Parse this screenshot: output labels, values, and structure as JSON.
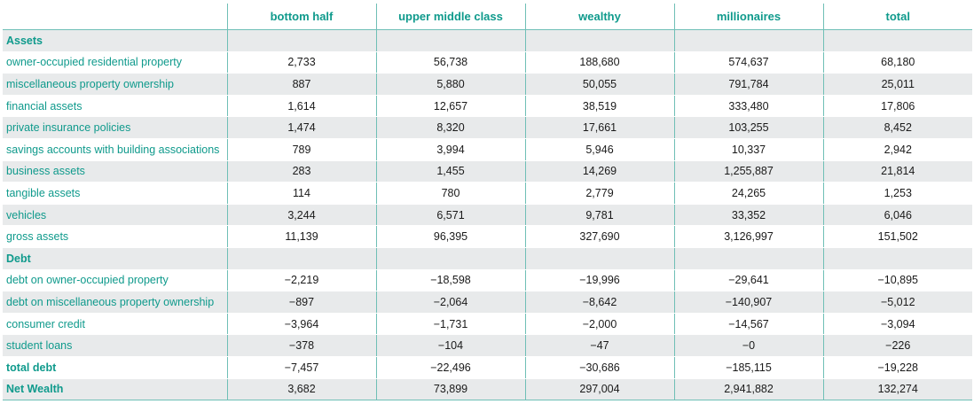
{
  "columns": [
    "",
    "bottom half",
    "upper middle class",
    "wealthy",
    "millionaires",
    "total"
  ],
  "rows": [
    {
      "label": "Assets",
      "type": "section",
      "values": [
        "",
        "",
        "",
        "",
        ""
      ]
    },
    {
      "label": "owner-occupied residential property",
      "type": "row",
      "values": [
        "2,733",
        "56,738",
        "188,680",
        "574,637",
        "68,180"
      ]
    },
    {
      "label": "miscellaneous property ownership",
      "type": "row",
      "values": [
        "887",
        "5,880",
        "50,055",
        "791,784",
        "25,011"
      ]
    },
    {
      "label": "financial assets",
      "type": "row",
      "values": [
        "1,614",
        "12,657",
        "38,519",
        "333,480",
        "17,806"
      ]
    },
    {
      "label": "private insurance policies",
      "type": "row",
      "values": [
        "1,474",
        "8,320",
        "17,661",
        "103,255",
        "8,452"
      ]
    },
    {
      "label": "savings accounts with building associations",
      "type": "row",
      "values": [
        "789",
        "3,994",
        "5,946",
        "10,337",
        "2,942"
      ]
    },
    {
      "label": "business assets",
      "type": "row",
      "values": [
        "283",
        "1,455",
        "14,269",
        "1,255,887",
        "21,814"
      ]
    },
    {
      "label": "tangible assets",
      "type": "row",
      "values": [
        "114",
        "780",
        "2,779",
        "24,265",
        "1,253"
      ]
    },
    {
      "label": "vehicles",
      "type": "row",
      "values": [
        "3,244",
        "6,571",
        "9,781",
        "33,352",
        "6,046"
      ]
    },
    {
      "label": "gross assets",
      "type": "row",
      "values": [
        "11,139",
        "96,395",
        "327,690",
        "3,126,997",
        "151,502"
      ]
    },
    {
      "label": "Debt",
      "type": "section",
      "values": [
        "",
        "",
        "",
        "",
        ""
      ]
    },
    {
      "label": "debt on owner-occupied property",
      "type": "row",
      "values": [
        "−2,219",
        "−18,598",
        "−19,996",
        "−29,641",
        "−10,895"
      ]
    },
    {
      "label": "debt on miscellaneous property ownership",
      "type": "row",
      "values": [
        "−897",
        "−2,064",
        "−8,642",
        "−140,907",
        "−5,012"
      ]
    },
    {
      "label": "consumer credit",
      "type": "row",
      "values": [
        "−3,964",
        "−1,731",
        "−2,000",
        "−14,567",
        "−3,094"
      ]
    },
    {
      "label": "student loans",
      "type": "row",
      "values": [
        "−378",
        "−104",
        "−47",
        "−0",
        "−226"
      ]
    },
    {
      "label": "total debt",
      "type": "bold",
      "values": [
        "−7,457",
        "−22,496",
        "−30,686",
        "−185,115",
        "−19,228"
      ]
    },
    {
      "label": "Net Wealth",
      "type": "bold",
      "values": [
        "3,682",
        "73,899",
        "297,004",
        "2,941,882",
        "132,274"
      ]
    }
  ],
  "colors": {
    "accent": "#0f9a8c",
    "stripe": "#e8eaeb",
    "rule": "#6fbfb6"
  }
}
